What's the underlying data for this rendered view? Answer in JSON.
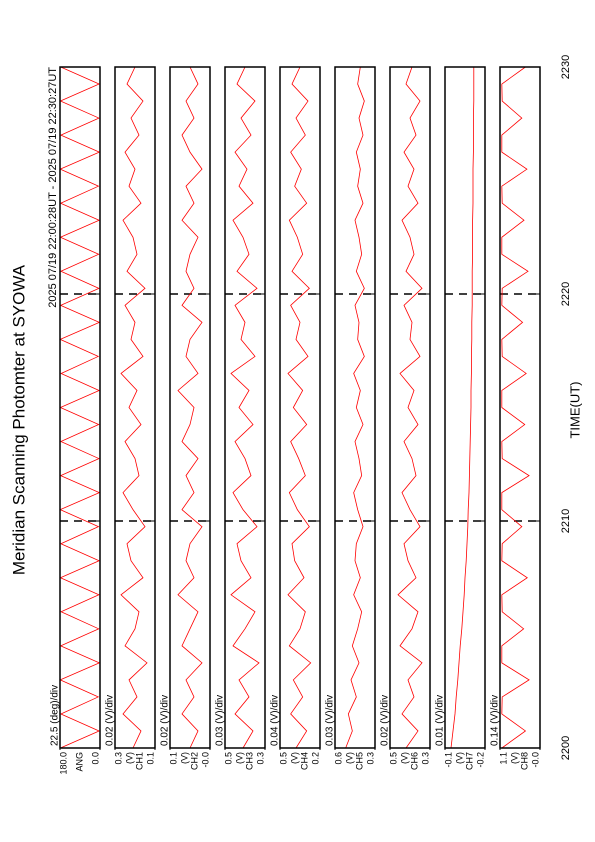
{
  "figure": {
    "title": "Meridian Scanning Photomter at SYOWA",
    "subtitle": "2025 07/19 22:00:28UT - 2025 07/19 22:30:27UT",
    "xlabel": "TIME(UT)",
    "xlim": [
      2200,
      2230
    ],
    "xticks": [
      2200,
      2210,
      2220,
      2230
    ],
    "x": [
      2200,
      2200.75,
      2201.5,
      2202.25,
      2203,
      2203.75,
      2204.5,
      2205.25,
      2206,
      2206.75,
      2207.5,
      2208.25,
      2209,
      2209.75,
      2210.5,
      2211.25,
      2212,
      2212.75,
      2213.5,
      2214.25,
      2215,
      2215.75,
      2216.5,
      2217.25,
      2218,
      2218.75,
      2219.5,
      2220.25,
      2221,
      2221.75,
      2222.5,
      2223.25,
      2224,
      2224.75,
      2225.5,
      2226.25,
      2227,
      2227.75,
      2228.5,
      2229.25,
      2230
    ]
  },
  "chart_data": [
    {
      "type": "line",
      "color": "#ff0000",
      "grid": true,
      "scale_label": "22.5 (deg)/div",
      "channel": "ANG",
      "ylim": [
        0,
        180
      ],
      "yticks": [
        {
          "value": 0,
          "label": "0.0"
        },
        {
          "value": 180,
          "label": "180.0"
        }
      ],
      "values": [
        178,
        4,
        176,
        8,
        179,
        3,
        177,
        6,
        175,
        5,
        178,
        4,
        176,
        7,
        179,
        3,
        177,
        5,
        176,
        6,
        178,
        4,
        175,
        8,
        179,
        3,
        177,
        5,
        176,
        6,
        178,
        4,
        177,
        7,
        179,
        3,
        176,
        5,
        178,
        4,
        177
      ]
    },
    {
      "type": "line",
      "color": "#ff0000",
      "grid": true,
      "scale_label": "0.02 (V)/div",
      "channel": "CH1",
      "unit": "(V)",
      "ylim": [
        0.1,
        0.3
      ],
      "yticks": [
        0.1,
        0.3
      ],
      "values": [
        0.21,
        0.17,
        0.26,
        0.19,
        0.23,
        0.14,
        0.25,
        0.2,
        0.18,
        0.27,
        0.16,
        0.22,
        0.24,
        0.15,
        0.21,
        0.26,
        0.18,
        0.2,
        0.25,
        0.17,
        0.23,
        0.19,
        0.27,
        0.16,
        0.22,
        0.2,
        0.25,
        0.15,
        0.24,
        0.19,
        0.21,
        0.26,
        0.17,
        0.23,
        0.2,
        0.25,
        0.18,
        0.22,
        0.16,
        0.24,
        0.2
      ]
    },
    {
      "type": "line",
      "color": "#ff0000",
      "grid": true,
      "scale_label": "0.02 (V)/div",
      "channel": "CH2",
      "unit": "(V)",
      "ylim": [
        0,
        0.1
      ],
      "yticks": [
        {
          "value": 0,
          "label": "-0.0"
        },
        0.1
      ],
      "values": [
        0.05,
        0.03,
        0.07,
        0.04,
        0.06,
        0.02,
        0.07,
        0.05,
        0.03,
        0.08,
        0.04,
        0.06,
        0.05,
        0.02,
        0.07,
        0.04,
        0.06,
        0.03,
        0.07,
        0.05,
        0.04,
        0.08,
        0.03,
        0.06,
        0.05,
        0.02,
        0.07,
        0.04,
        0.06,
        0.05,
        0.03,
        0.07,
        0.04,
        0.06,
        0.02,
        0.05,
        0.07,
        0.04,
        0.06,
        0.03,
        0.05
      ]
    },
    {
      "type": "line",
      "color": "#ff0000",
      "grid": true,
      "scale_label": "0.03 (V)/div",
      "channel": "CH3",
      "unit": "(V)",
      "ylim": [
        0.3,
        0.5
      ],
      "yticks": [
        0.3,
        0.5
      ],
      "values": [
        0.41,
        0.36,
        0.45,
        0.38,
        0.43,
        0.33,
        0.46,
        0.4,
        0.35,
        0.47,
        0.37,
        0.42,
        0.44,
        0.34,
        0.41,
        0.46,
        0.37,
        0.4,
        0.45,
        0.36,
        0.43,
        0.38,
        0.47,
        0.35,
        0.42,
        0.4,
        0.45,
        0.34,
        0.44,
        0.38,
        0.41,
        0.46,
        0.36,
        0.43,
        0.39,
        0.45,
        0.37,
        0.42,
        0.35,
        0.44,
        0.4
      ]
    },
    {
      "type": "line",
      "color": "#ff0000",
      "grid": true,
      "scale_label": "0.04 (V)/div",
      "channel": "CH4",
      "unit": "(V)",
      "ylim": [
        0.2,
        0.5
      ],
      "yticks": [
        0.2,
        0.5
      ],
      "values": [
        0.38,
        0.3,
        0.42,
        0.33,
        0.4,
        0.27,
        0.43,
        0.35,
        0.31,
        0.44,
        0.32,
        0.39,
        0.41,
        0.28,
        0.37,
        0.43,
        0.31,
        0.36,
        0.42,
        0.3,
        0.4,
        0.33,
        0.44,
        0.29,
        0.38,
        0.35,
        0.42,
        0.28,
        0.41,
        0.33,
        0.37,
        0.43,
        0.3,
        0.39,
        0.34,
        0.42,
        0.31,
        0.38,
        0.29,
        0.41,
        0.35
      ]
    },
    {
      "type": "line",
      "color": "#ff0000",
      "grid": true,
      "scale_label": "0.03 (V)/div",
      "channel": "CH5",
      "unit": "(V)",
      "ylim": [
        0.3,
        0.6
      ],
      "yticks": [
        0.3,
        0.6
      ],
      "values": [
        0.52,
        0.47,
        0.5,
        0.44,
        0.48,
        0.42,
        0.47,
        0.43,
        0.4,
        0.46,
        0.41,
        0.45,
        0.44,
        0.39,
        0.43,
        0.46,
        0.4,
        0.42,
        0.45,
        0.39,
        0.44,
        0.41,
        0.46,
        0.38,
        0.43,
        0.42,
        0.45,
        0.38,
        0.44,
        0.4,
        0.42,
        0.45,
        0.39,
        0.43,
        0.41,
        0.44,
        0.39,
        0.42,
        0.38,
        0.43,
        0.41
      ]
    },
    {
      "type": "line",
      "color": "#ff0000",
      "grid": true,
      "scale_label": "0.02 (V)/div",
      "channel": "CH6",
      "unit": "(V)",
      "ylim": [
        0.3,
        0.5
      ],
      "yticks": [
        0.3,
        0.5
      ],
      "values": [
        0.42,
        0.36,
        0.44,
        0.38,
        0.41,
        0.34,
        0.45,
        0.39,
        0.36,
        0.46,
        0.37,
        0.41,
        0.43,
        0.35,
        0.4,
        0.44,
        0.37,
        0.39,
        0.43,
        0.36,
        0.41,
        0.38,
        0.45,
        0.35,
        0.4,
        0.39,
        0.43,
        0.34,
        0.42,
        0.38,
        0.4,
        0.44,
        0.36,
        0.41,
        0.38,
        0.43,
        0.37,
        0.4,
        0.35,
        0.42,
        0.39
      ]
    },
    {
      "type": "line",
      "color": "#ff0000",
      "grid": true,
      "scale_label": "0.01 (V)/div",
      "channel": "CH7",
      "unit": "(V)",
      "ylim": [
        -0.2,
        -0.1
      ],
      "yticks": [
        -0.2,
        -0.1
      ],
      "values": [
        -0.115,
        -0.12,
        -0.125,
        -0.128,
        -0.132,
        -0.135,
        -0.138,
        -0.142,
        -0.145,
        -0.148,
        -0.15,
        -0.153,
        -0.155,
        -0.157,
        -0.158,
        -0.16,
        -0.161,
        -0.162,
        -0.163,
        -0.164,
        -0.165,
        -0.165,
        -0.166,
        -0.166,
        -0.167,
        -0.167,
        -0.168,
        -0.168,
        -0.168,
        -0.169,
        -0.169,
        -0.169,
        -0.17,
        -0.17,
        -0.17,
        -0.171,
        -0.171,
        -0.171,
        -0.172,
        -0.172,
        -0.172
      ]
    },
    {
      "type": "line",
      "color": "#ff0000",
      "grid": true,
      "scale_label": "0.14 (V)/div",
      "channel": "CH8",
      "unit": "(V)",
      "ylim": [
        0,
        1.1
      ],
      "yticks": [
        {
          "value": 0,
          "label": "-0.0"
        },
        1.1
      ],
      "values": [
        1.05,
        0.4,
        1.05,
        1.04,
        0.3,
        1.05,
        1.05,
        0.45,
        1.04,
        1.05,
        0.35,
        1.05,
        1.04,
        0.5,
        1.05,
        1.05,
        0.3,
        1.04,
        1.05,
        0.42,
        1.05,
        1.05,
        0.38,
        1.04,
        1.05,
        0.48,
        1.05,
        1.04,
        0.33,
        1.05,
        1.05,
        0.44,
        1.04,
        1.05,
        0.36,
        1.05,
        1.05,
        0.5,
        1.04,
        1.05,
        0.4
      ]
    }
  ]
}
